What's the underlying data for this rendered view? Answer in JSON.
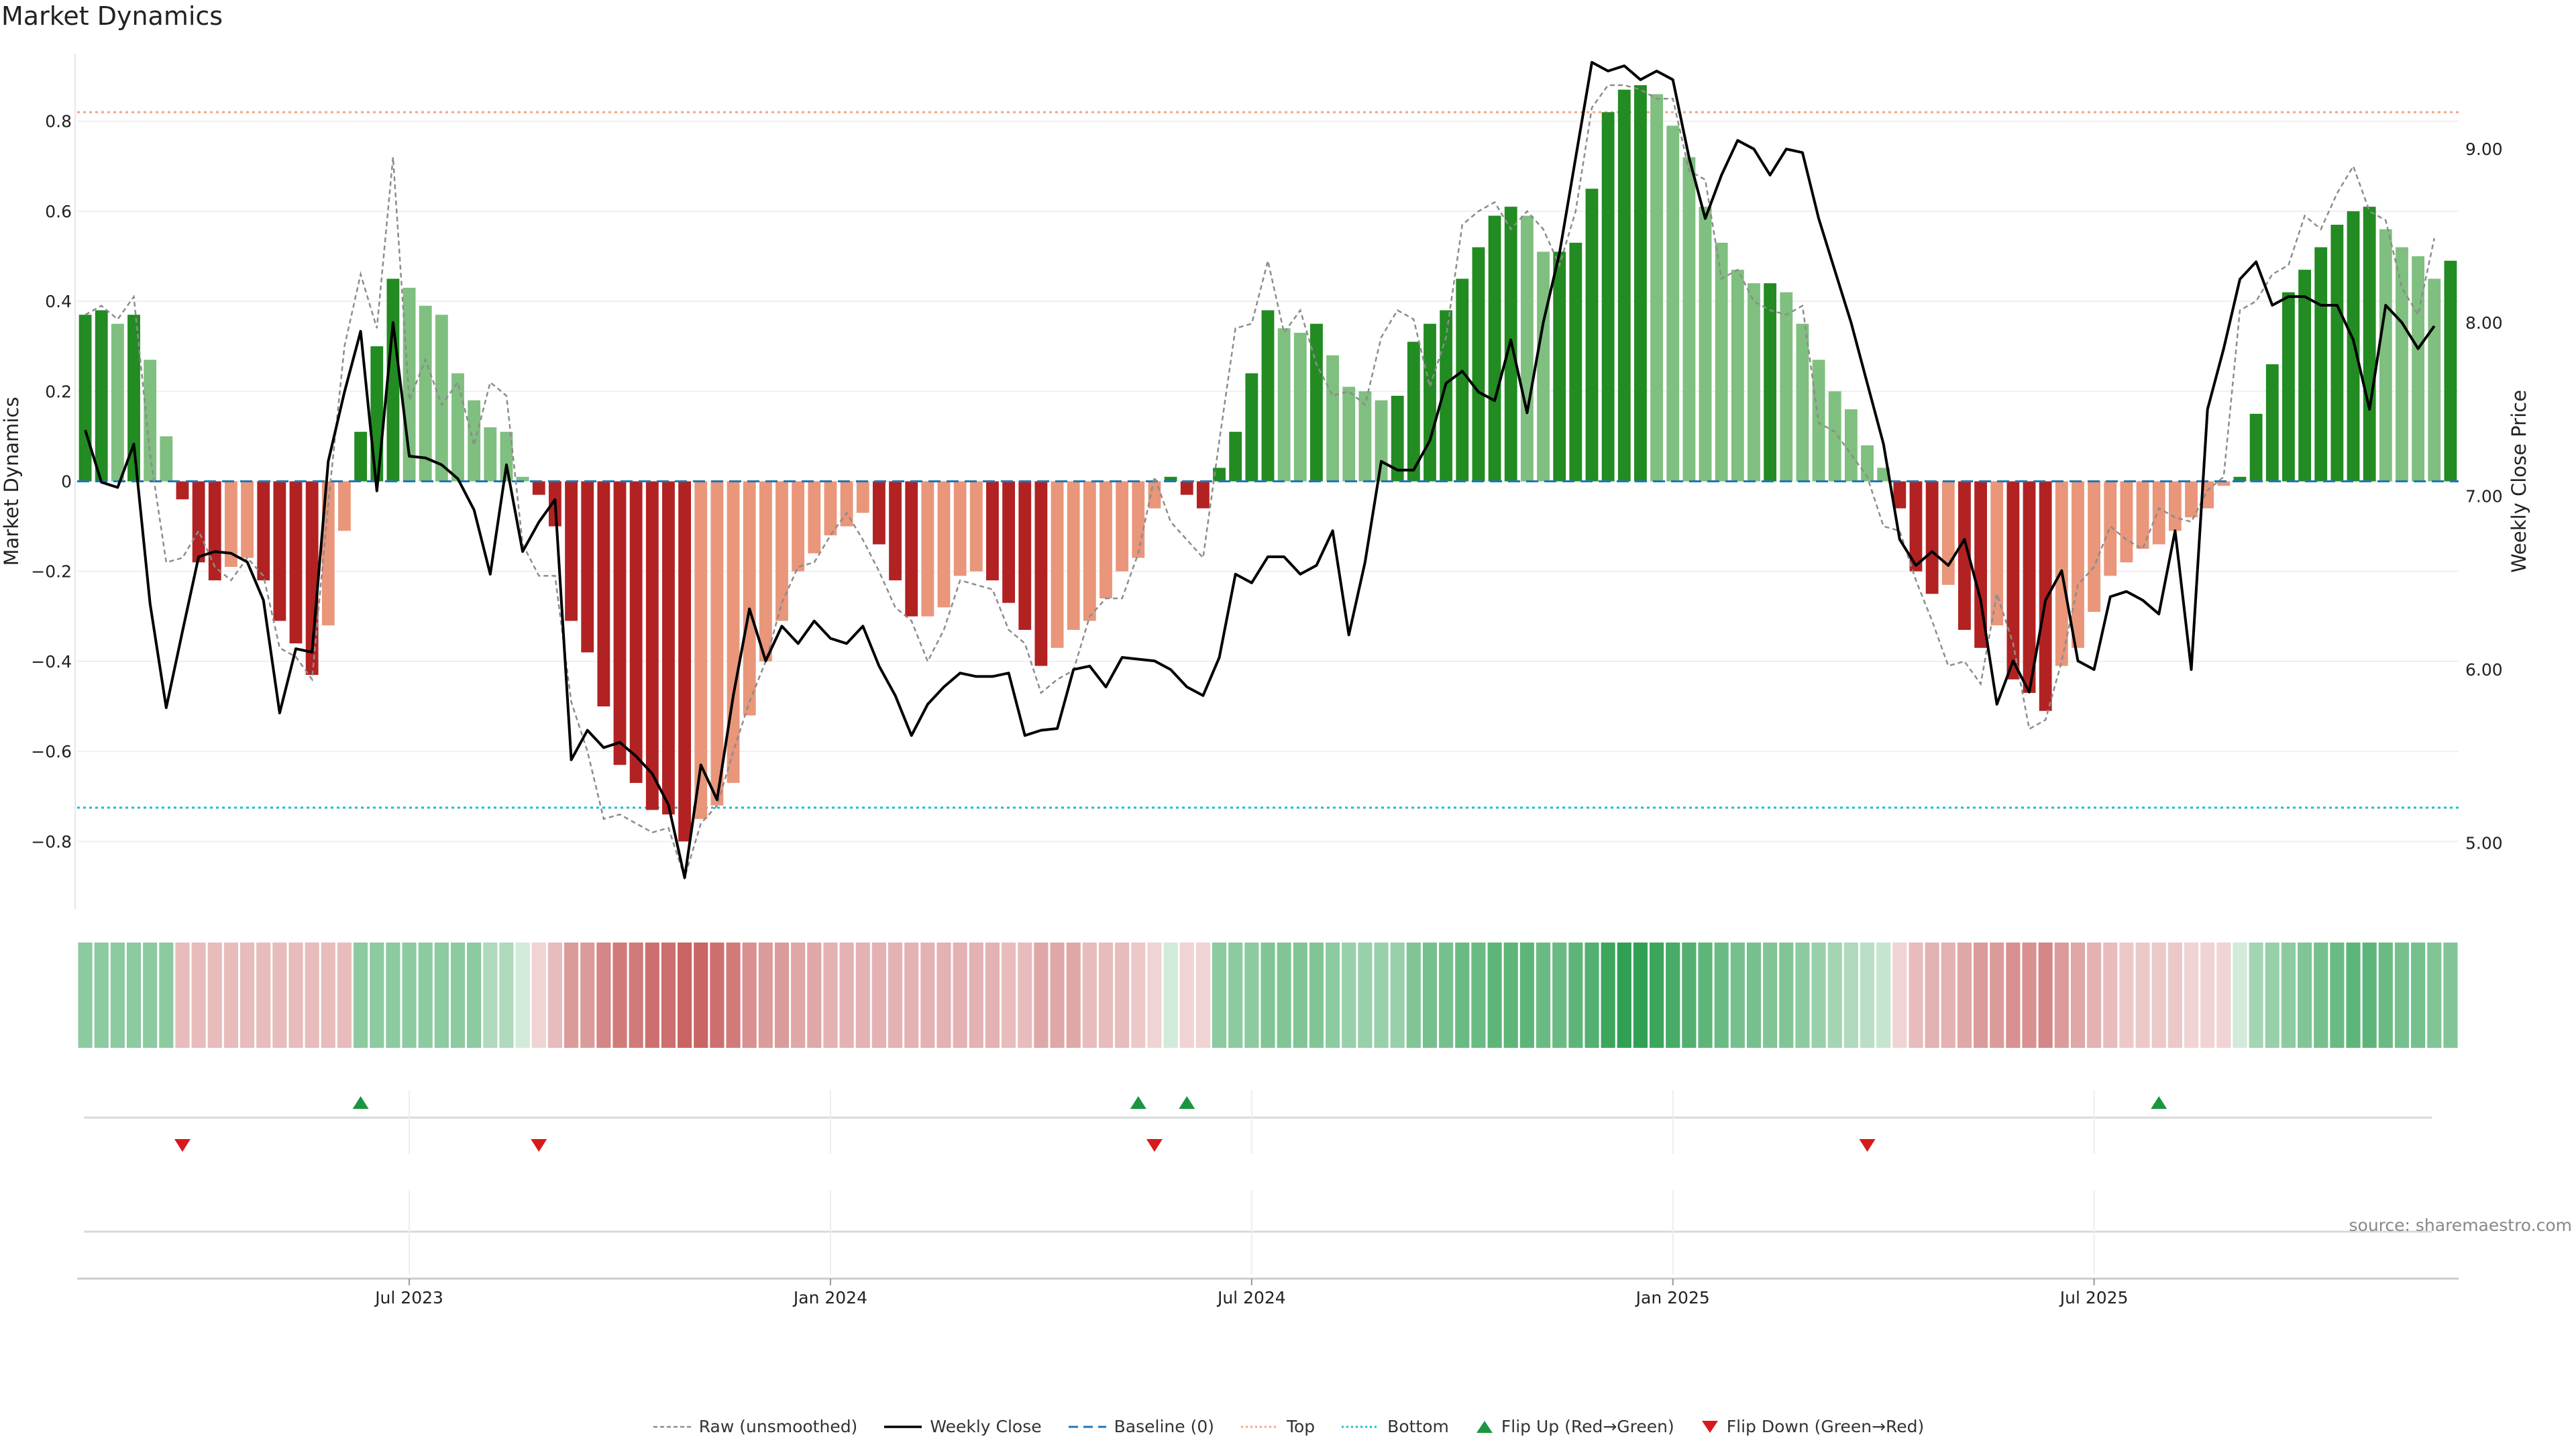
{
  "title": "Market Dynamics",
  "source": "source: sharemaestro.com",
  "colors": {
    "bull_strong": "#228b22",
    "bull_weak": "#7fbf7f",
    "bear_strong": "#b22222",
    "bear_weak": "#e9967a",
    "price": "#000000",
    "raw": "#8c8c8c",
    "baseline": "#1f77b4",
    "top": "#f4a582",
    "bottom": "#17becf",
    "flip_up": "#1a9641",
    "flip_down": "#d7191c"
  },
  "legend": [
    {
      "label": "Raw (unsmoothed)",
      "icon": "dashed-line-gray"
    },
    {
      "label": "Weekly Close",
      "icon": "solid-line-black"
    },
    {
      "label": "Baseline (0)",
      "icon": "dashed-line-blue"
    },
    {
      "label": "Top",
      "icon": "dotted-line-orange"
    },
    {
      "label": "Bottom",
      "icon": "dotted-line-cyan"
    },
    {
      "label": "Flip Up (Red→Green)",
      "icon": "triangle-up-green"
    },
    {
      "label": "Flip Down (Green→Red)",
      "icon": "triangle-down-red"
    }
  ],
  "chart_data": {
    "type": "bar",
    "ylabel": "Market Dynamics",
    "ylabel_right": "Weekly Close Price",
    "ylim": [
      -0.95,
      0.95
    ],
    "y_ticks": [
      0.8,
      0.6,
      0.4,
      0.2,
      0,
      -0.2,
      -0.4,
      -0.6,
      -0.8
    ],
    "y_tick_labels": [
      "0.8",
      "0.6",
      "0.4",
      "0.2",
      "0",
      "−0.2",
      "−0.4",
      "−0.6",
      "−0.8"
    ],
    "y2lim": [
      4.62,
      9.55
    ],
    "y2_ticks": [
      9.0,
      8.0,
      7.0,
      6.0,
      5.0
    ],
    "y2_tick_labels": [
      "9.00",
      "8.00",
      "7.00",
      "6.00",
      "5.00"
    ],
    "x_ticks": [
      20.5,
      46.5,
      72.5,
      98.5,
      124.5
    ],
    "x_tick_labels": [
      "Jul 2023",
      "Jan 2024",
      "Jul 2024",
      "Jan 2025",
      "Jul 2025"
    ],
    "top_threshold": 0.82,
    "bottom_threshold": -0.725,
    "baseline": 0,
    "values": [
      0.37,
      0.38,
      0.35,
      0.37,
      0.27,
      0.1,
      -0.04,
      -0.18,
      -0.22,
      -0.19,
      -0.17,
      -0.22,
      -0.31,
      -0.36,
      -0.43,
      -0.32,
      -0.11,
      0.11,
      0.3,
      0.45,
      0.43,
      0.39,
      0.37,
      0.24,
      0.18,
      0.12,
      0.11,
      0.01,
      -0.03,
      -0.1,
      -0.31,
      -0.38,
      -0.5,
      -0.63,
      -0.67,
      -0.73,
      -0.74,
      -0.8,
      -0.75,
      -0.72,
      -0.67,
      -0.52,
      -0.4,
      -0.31,
      -0.2,
      -0.16,
      -0.12,
      -0.1,
      -0.07,
      -0.14,
      -0.22,
      -0.3,
      -0.3,
      -0.28,
      -0.21,
      -0.2,
      -0.22,
      -0.27,
      -0.33,
      -0.41,
      -0.37,
      -0.33,
      -0.31,
      -0.26,
      -0.2,
      -0.17,
      -0.06,
      0.01,
      -0.03,
      -0.06,
      0.03,
      0.11,
      0.24,
      0.38,
      0.34,
      0.33,
      0.35,
      0.28,
      0.21,
      0.2,
      0.18,
      0.19,
      0.31,
      0.35,
      0.38,
      0.45,
      0.52,
      0.59,
      0.61,
      0.59,
      0.51,
      0.51,
      0.53,
      0.65,
      0.82,
      0.87,
      0.88,
      0.86,
      0.79,
      0.72,
      0.61,
      0.53,
      0.47,
      0.44,
      0.44,
      0.42,
      0.35,
      0.27,
      0.2,
      0.16,
      0.08,
      0.03,
      -0.06,
      -0.2,
      -0.25,
      -0.23,
      -0.33,
      -0.37,
      -0.32,
      -0.44,
      -0.47,
      -0.51,
      -0.41,
      -0.37,
      -0.29,
      -0.21,
      -0.18,
      -0.15,
      -0.14,
      -0.11,
      -0.08,
      -0.06,
      -0.01,
      0.01,
      0.15,
      0.26,
      0.42,
      0.47,
      0.52,
      0.57,
      0.6,
      0.61,
      0.56,
      0.52,
      0.5,
      0.45,
      0.49
    ],
    "raw_values": [
      0.37,
      0.39,
      0.36,
      0.41,
      0.06,
      -0.18,
      -0.17,
      -0.11,
      -0.19,
      -0.22,
      -0.17,
      -0.21,
      -0.37,
      -0.39,
      -0.44,
      -0.05,
      0.3,
      0.46,
      0.34,
      0.72,
      0.18,
      0.27,
      0.17,
      0.22,
      0.08,
      0.22,
      0.19,
      -0.14,
      -0.21,
      -0.21,
      -0.49,
      -0.6,
      -0.75,
      -0.74,
      -0.76,
      -0.78,
      -0.77,
      -0.88,
      -0.76,
      -0.72,
      -0.6,
      -0.49,
      -0.4,
      -0.27,
      -0.19,
      -0.18,
      -0.12,
      -0.07,
      -0.13,
      -0.2,
      -0.28,
      -0.31,
      -0.4,
      -0.33,
      -0.22,
      -0.23,
      -0.24,
      -0.33,
      -0.36,
      -0.47,
      -0.44,
      -0.42,
      -0.3,
      -0.26,
      -0.26,
      -0.16,
      0.01,
      -0.09,
      -0.13,
      -0.17,
      0.09,
      0.34,
      0.35,
      0.49,
      0.33,
      0.38,
      0.26,
      0.19,
      0.2,
      0.17,
      0.32,
      0.38,
      0.36,
      0.21,
      0.32,
      0.57,
      0.6,
      0.62,
      0.56,
      0.6,
      0.56,
      0.48,
      0.6,
      0.83,
      0.88,
      0.88,
      0.87,
      0.85,
      0.85,
      0.69,
      0.67,
      0.45,
      0.47,
      0.4,
      0.38,
      0.37,
      0.39,
      0.13,
      0.11,
      0.06,
      0.01,
      -0.1,
      -0.11,
      -0.22,
      -0.31,
      -0.41,
      -0.4,
      -0.45,
      -0.25,
      -0.36,
      -0.55,
      -0.53,
      -0.4,
      -0.23,
      -0.19,
      -0.1,
      -0.13,
      -0.15,
      -0.06,
      -0.08,
      -0.09,
      -0.02,
      0.01,
      0.38,
      0.4,
      0.46,
      0.48,
      0.59,
      0.56,
      0.64,
      0.7,
      0.6,
      0.58,
      0.43,
      0.37,
      0.54
    ],
    "weekly_close": [
      7.38,
      7.08,
      7.05,
      7.3,
      6.38,
      5.78,
      6.22,
      6.65,
      6.68,
      6.67,
      6.62,
      6.4,
      5.75,
      6.12,
      6.1,
      7.2,
      7.6,
      7.95,
      7.03,
      8.0,
      7.23,
      7.22,
      7.18,
      7.1,
      6.92,
      6.55,
      7.18,
      6.68,
      6.85,
      6.98,
      5.48,
      5.65,
      5.55,
      5.58,
      5.5,
      5.4,
      5.22,
      4.8,
      5.45,
      5.25,
      5.85,
      6.35,
      6.05,
      6.25,
      6.15,
      6.28,
      6.18,
      6.15,
      6.25,
      6.02,
      5.85,
      5.62,
      5.8,
      5.9,
      5.98,
      5.96,
      5.96,
      5.98,
      5.62,
      5.65,
      5.66,
      6.0,
      6.02,
      5.9,
      6.07,
      6.06,
      6.05,
      6.0,
      5.9,
      5.85,
      6.07,
      6.55,
      6.5,
      6.65,
      6.65,
      6.55,
      6.6,
      6.8,
      6.2,
      6.62,
      7.2,
      7.15,
      7.15,
      7.32,
      7.65,
      7.72,
      7.6,
      7.55,
      7.9,
      7.48,
      8.0,
      8.4,
      8.95,
      9.5,
      9.45,
      9.48,
      9.4,
      9.45,
      9.4,
      8.95,
      8.6,
      8.85,
      9.05,
      9.0,
      8.85,
      9.0,
      8.98,
      8.6,
      8.3,
      8.0,
      7.65,
      7.3,
      6.75,
      6.6,
      6.68,
      6.6,
      6.75,
      6.4,
      5.8,
      6.05,
      5.87,
      6.4,
      6.57,
      6.05,
      6.0,
      6.42,
      6.45,
      6.4,
      6.32,
      6.8,
      6.0,
      7.5,
      7.85,
      8.25,
      8.35,
      8.1,
      8.15,
      8.15,
      8.1,
      8.1,
      7.9,
      7.5,
      8.1,
      8.0,
      7.85,
      7.98
    ],
    "heat_strip_alpha": [
      0.5,
      0.5,
      0.5,
      0.5,
      0.5,
      0.5,
      0.3,
      0.3,
      0.3,
      0.3,
      0.3,
      0.3,
      0.3,
      0.3,
      0.3,
      0.3,
      0.3,
      0.5,
      0.5,
      0.5,
      0.5,
      0.5,
      0.5,
      0.5,
      0.5,
      0.35,
      0.35,
      0.2,
      0.2,
      0.3,
      0.45,
      0.45,
      0.55,
      0.6,
      0.6,
      0.65,
      0.65,
      0.7,
      0.7,
      0.65,
      0.6,
      0.5,
      0.45,
      0.45,
      0.4,
      0.4,
      0.35,
      0.35,
      0.35,
      0.35,
      0.35,
      0.35,
      0.35,
      0.35,
      0.35,
      0.35,
      0.35,
      0.3,
      0.3,
      0.4,
      0.4,
      0.4,
      0.3,
      0.3,
      0.3,
      0.25,
      0.2,
      0.2,
      0.2,
      0.2,
      0.5,
      0.5,
      0.5,
      0.55,
      0.55,
      0.55,
      0.55,
      0.5,
      0.45,
      0.45,
      0.45,
      0.45,
      0.55,
      0.6,
      0.6,
      0.65,
      0.65,
      0.7,
      0.7,
      0.7,
      0.65,
      0.65,
      0.7,
      0.75,
      0.85,
      0.9,
      0.9,
      0.85,
      0.8,
      0.75,
      0.7,
      0.65,
      0.6,
      0.6,
      0.55,
      0.55,
      0.5,
      0.45,
      0.4,
      0.35,
      0.3,
      0.25,
      0.2,
      0.3,
      0.35,
      0.35,
      0.4,
      0.45,
      0.45,
      0.5,
      0.5,
      0.55,
      0.45,
      0.4,
      0.35,
      0.3,
      0.25,
      0.25,
      0.25,
      0.25,
      0.2,
      0.2,
      0.2,
      0.2,
      0.4,
      0.45,
      0.5,
      0.55,
      0.6,
      0.65,
      0.7,
      0.7,
      0.65,
      0.6,
      0.6,
      0.55,
      0.55
    ],
    "flips_up": [
      17,
      65,
      68,
      128
    ],
    "flips_down": [
      6,
      28,
      66,
      110
    ]
  }
}
